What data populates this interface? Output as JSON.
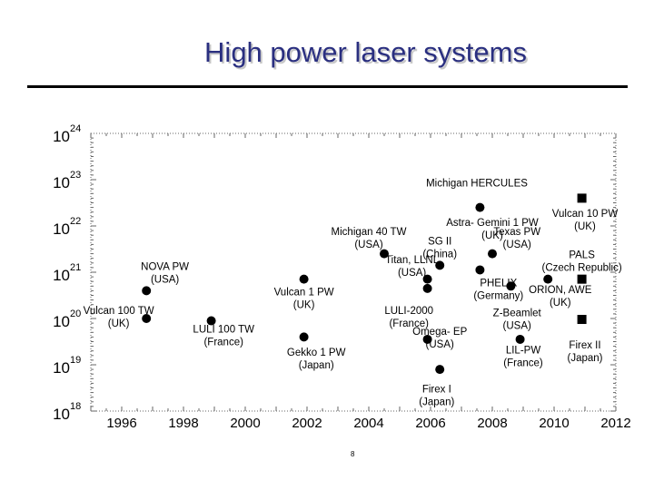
{
  "slide": {
    "title": "High power laser systems",
    "footer": "8"
  },
  "chart_data": {
    "type": "scatter",
    "title": "High power laser systems",
    "xlabel": "",
    "ylabel": "",
    "y_scale": "log",
    "x_range": [
      1995,
      2012
    ],
    "y_range_exponent": [
      18,
      24
    ],
    "x_ticks": [
      1996,
      1998,
      2000,
      2002,
      2004,
      2006,
      2008,
      2010,
      2012
    ],
    "y_ticks": [
      {
        "base": "10",
        "exp": "24",
        "e": 24
      },
      {
        "base": "10",
        "exp": "23",
        "e": 23
      },
      {
        "base": "10",
        "exp": "22",
        "e": 22
      },
      {
        "base": "10",
        "exp": "21",
        "e": 21
      },
      {
        "base": "10",
        "exp": "20",
        "e": 20
      },
      {
        "base": "10",
        "exp": "19",
        "e": 19
      },
      {
        "base": "10",
        "exp": "18",
        "e": 18
      }
    ],
    "grid": false,
    "marker_color": "#000000",
    "accent_color": "#b00000",
    "points": [
      {
        "x": 1996.8,
        "e": 20.0,
        "marker": "circle"
      },
      {
        "x": 1996.8,
        "e": 20.6,
        "marker": "circle"
      },
      {
        "x": 1998.9,
        "e": 19.95,
        "marker": "circle"
      },
      {
        "x": 2001.9,
        "e": 20.85,
        "marker": "circle"
      },
      {
        "x": 2001.9,
        "e": 19.6,
        "marker": "circle"
      },
      {
        "x": 2004.5,
        "e": 21.4,
        "marker": "circle"
      },
      {
        "x": 2005.9,
        "e": 20.65,
        "marker": "circle"
      },
      {
        "x": 2005.9,
        "e": 20.85,
        "marker": "circle"
      },
      {
        "x": 2005.9,
        "e": 19.55,
        "marker": "circle"
      },
      {
        "x": 2006.3,
        "e": 21.15,
        "marker": "circle"
      },
      {
        "x": 2006.3,
        "e": 18.9,
        "marker": "circle"
      },
      {
        "x": 2007.6,
        "e": 22.4,
        "marker": "circle"
      },
      {
        "x": 2007.6,
        "e": 21.05,
        "marker": "circle"
      },
      {
        "x": 2008.0,
        "e": 21.4,
        "marker": "circle"
      },
      {
        "x": 2008.6,
        "e": 20.7,
        "marker": "circle"
      },
      {
        "x": 2008.9,
        "e": 19.55,
        "marker": "circle"
      },
      {
        "x": 2009.8,
        "e": 20.85,
        "marker": "circle"
      },
      {
        "x": 2010.9,
        "e": 22.6,
        "marker": "square"
      },
      {
        "x": 2010.9,
        "e": 20.85,
        "marker": "square"
      },
      {
        "x": 2010.9,
        "e": 19.98,
        "marker": "square"
      }
    ],
    "annotations": [
      {
        "lines": [
          "NOVA PW",
          "(USA)"
        ],
        "x": 1997.4,
        "e": 21.05
      },
      {
        "lines": [
          "Vulcan 100 TW",
          "(UK)"
        ],
        "x": 1995.9,
        "e": 20.1
      },
      {
        "lines": [
          "LULI 100 TW",
          "(France)"
        ],
        "x": 1999.3,
        "e": 19.7
      },
      {
        "lines": [
          "Vulcan 1 PW",
          "(UK)"
        ],
        "x": 2001.9,
        "e": 20.5
      },
      {
        "lines": [
          "Gekko 1 PW",
          "(Japan)"
        ],
        "x": 2002.3,
        "e": 19.2
      },
      {
        "lines": [
          "Michigan 40 TW",
          "(USA)"
        ],
        "x": 2004.0,
        "e": 21.8
      },
      {
        "lines": [
          "Titan, LLNL",
          "(USA)"
        ],
        "x": 2005.4,
        "e": 21.2
      },
      {
        "lines": [
          "LULI-2000",
          "(France)"
        ],
        "x": 2005.3,
        "e": 20.1
      },
      {
        "lines": [
          "Michigan HERCULES"
        ],
        "x": 2007.5,
        "e": 22.85
      },
      {
        "lines": [
          "Astra- Gemini 1 PW",
          "(UK)"
        ],
        "x": 2008.0,
        "e": 22.0
      },
      {
        "lines": [
          "Vulcan 10 PW",
          "(UK)"
        ],
        "x": 2011.0,
        "e": 22.2
      },
      {
        "lines": [
          "SG II",
          "(China)"
        ],
        "x": 2006.3,
        "e": 21.6
      },
      {
        "lines": [
          "Texas PW",
          "(USA)"
        ],
        "x": 2008.8,
        "e": 21.8
      },
      {
        "lines": [
          "PALS",
          "(Czech Republic)"
        ],
        "x": 2010.9,
        "e": 21.3
      },
      {
        "lines": [
          "PHELIX",
          "(Germany)"
        ],
        "x": 2008.2,
        "e": 20.7
      },
      {
        "lines": [
          "ORION, AWE",
          "(UK)"
        ],
        "x": 2010.2,
        "e": 20.55
      },
      {
        "lines": [
          "Z-Beamlet",
          "(USA)"
        ],
        "x": 2008.8,
        "e": 20.05
      },
      {
        "lines": [
          "Omega- EP",
          "(USA)"
        ],
        "x": 2006.3,
        "e": 19.65
      },
      {
        "lines": [
          "LIL-PW",
          "(France)"
        ],
        "x": 2009.0,
        "e": 19.25
      },
      {
        "lines": [
          "Firex II",
          "(Japan)"
        ],
        "x": 2011.0,
        "e": 19.35
      },
      {
        "lines": [
          "Firex I",
          "(Japan)"
        ],
        "x": 2006.2,
        "e": 18.4
      }
    ]
  }
}
